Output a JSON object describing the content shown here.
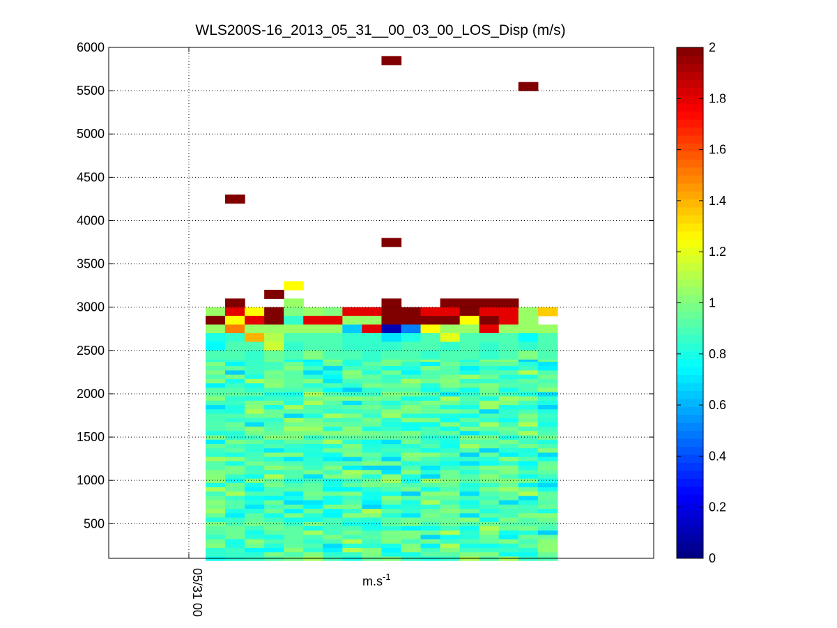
{
  "chart_data": {
    "type": "heatmap",
    "title": "WLS200S-16_2013_05_31__00_03_00_LOS_Disp (m/s)",
    "xlabel": "m.s-1",
    "ylabel": "",
    "x_ticks": [
      "05/31 00"
    ],
    "y_ticks": [
      500,
      1000,
      1500,
      2000,
      2500,
      3000,
      3500,
      4000,
      4500,
      5000,
      5500,
      6000
    ],
    "ylim": [
      100,
      6000
    ],
    "grid": true,
    "colorbar": {
      "colormap": "jet",
      "range": [
        0,
        2
      ],
      "ticks": [
        0,
        0.2,
        0.4,
        0.6,
        0.8,
        1,
        1.2,
        1.4,
        1.6,
        1.8,
        2
      ]
    },
    "columns": 18,
    "altitude_bin": 100,
    "outliers": [
      {
        "col": 9,
        "alt": 5850,
        "value": 2
      },
      {
        "col": 16,
        "alt": 5550,
        "value": 2
      },
      {
        "col": 1,
        "alt": 4250,
        "value": 2
      },
      {
        "col": 9,
        "alt": 3750,
        "value": 2
      },
      {
        "col": 3,
        "alt": 3150,
        "value": 2
      },
      {
        "col": 4,
        "alt": 3250,
        "value": 1.25
      }
    ],
    "rows": [
      {
        "alt": 3050,
        "values": [
          null,
          2,
          null,
          null,
          1.05,
          null,
          null,
          null,
          null,
          2,
          null,
          null,
          2,
          2,
          2,
          2,
          null,
          null
        ]
      },
      {
        "alt": 2950,
        "values": [
          1.05,
          1.8,
          1.25,
          2,
          1.0,
          1.05,
          1.0,
          1.8,
          1.8,
          2,
          2,
          1.8,
          1.8,
          2,
          1.8,
          1.8,
          1.05,
          1.35
        ]
      },
      {
        "alt": 2850,
        "values": [
          2,
          1.25,
          1.8,
          2,
          0.85,
          1.8,
          1.8,
          1.05,
          1.05,
          2,
          2,
          2,
          2,
          1.25,
          2,
          1.8,
          1.05,
          null
        ]
      },
      {
        "alt": 2750,
        "values": [
          1.05,
          1.5,
          1.05,
          1.05,
          1.05,
          1.05,
          1.05,
          0.65,
          1.8,
          0.1,
          0.5,
          1.25,
          1.05,
          1.05,
          1.8,
          1.05,
          1.05,
          1.05
        ]
      },
      {
        "alt": 2650,
        "values": [
          0.8,
          0.85,
          1.4,
          1.1,
          0.9,
          0.9,
          0.9,
          0.85,
          0.85,
          0.7,
          0.8,
          0.9,
          1.2,
          0.9,
          0.9,
          0.9,
          0.75,
          0.9
        ]
      },
      {
        "alt": 2550,
        "values": [
          0.75,
          0.9,
          0.9,
          1.15,
          0.85,
          0.9,
          0.9,
          0.85,
          0.85,
          0.85,
          0.9,
          0.9,
          0.85,
          0.9,
          0.85,
          0.9,
          0.85,
          0.9
        ]
      },
      {
        "alt": 2450,
        "values": [
          0.9,
          0.9,
          0.85,
          0.95,
          0.9,
          1.0,
          0.9,
          0.9,
          0.85,
          0.9,
          0.9,
          0.85,
          0.9,
          0.9,
          0.85,
          0.9,
          1.0,
          0.9
        ]
      }
    ],
    "bulk": {
      "alt_min": 100,
      "alt_max": 2400,
      "value_range": [
        0.65,
        1.1
      ],
      "typical": 0.9
    }
  }
}
